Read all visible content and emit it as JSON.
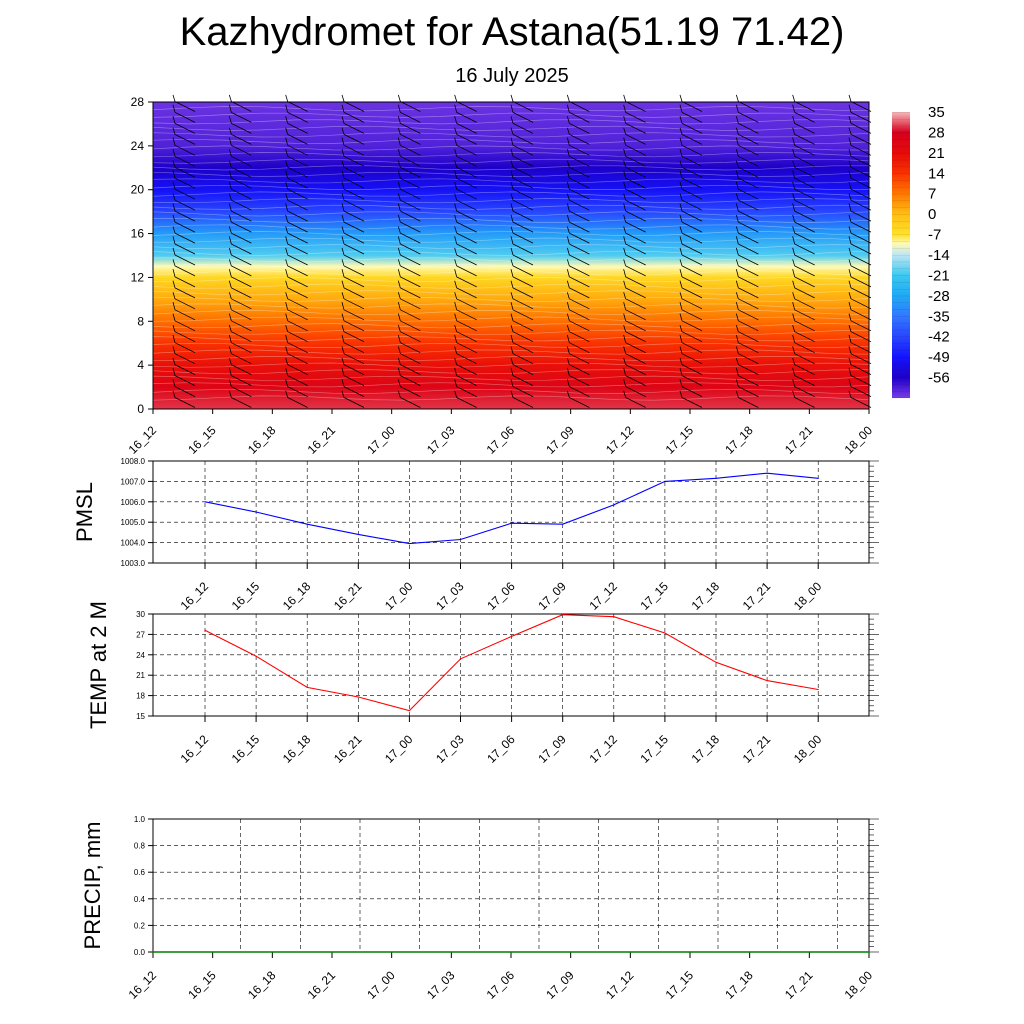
{
  "title": "Kazhydromet for Astana(51.19 71.42)",
  "subtitle": "16 July 2025",
  "colors": {
    "pmsl_line": "#0000ff",
    "temp_line": "#ff0000",
    "precip_line": "#008000"
  },
  "chart_data": [
    {
      "type": "heatmap",
      "name": "vertical-temperature-cross-section",
      "x_tick_labels": [
        "16_12",
        "16_15",
        "16_18",
        "16_21",
        "17_00",
        "17_03",
        "17_06",
        "17_09",
        "17_12",
        "17_15",
        "17_18",
        "17_21",
        "18_00"
      ],
      "y_tick_labels": [
        "0",
        "4",
        "8",
        "12",
        "16",
        "20",
        "24",
        "28"
      ],
      "ylim": [
        0,
        28
      ],
      "colorbar_labels": [
        "35",
        "28",
        "21",
        "14",
        "7",
        "0",
        "-7",
        "-14",
        "-21",
        "-28",
        "-35",
        "-42",
        "-49",
        "-56"
      ],
      "colorbar_range": [
        -63,
        35
      ],
      "temperature_profile": [
        {
          "y": 0,
          "t": 30
        },
        {
          "y": 2,
          "t": 25
        },
        {
          "y": 4,
          "t": 20
        },
        {
          "y": 6,
          "t": 14
        },
        {
          "y": 8,
          "t": 8
        },
        {
          "y": 10,
          "t": 2
        },
        {
          "y": 12,
          "t": -5
        },
        {
          "y": 13,
          "t": -10
        },
        {
          "y": 14,
          "t": -20
        },
        {
          "y": 16,
          "t": -30
        },
        {
          "y": 18,
          "t": -42
        },
        {
          "y": 20,
          "t": -50
        },
        {
          "y": 22,
          "t": -56
        },
        {
          "y": 24,
          "t": -60
        },
        {
          "y": 28,
          "t": -62
        }
      ],
      "wind_barbs": true
    },
    {
      "type": "line",
      "name": "pmsl",
      "ylabel": "PMSL",
      "x": [
        "16_12",
        "16_15",
        "16_18",
        "16_21",
        "17_00",
        "17_03",
        "17_06",
        "17_09",
        "17_12",
        "17_15",
        "17_18",
        "17_21",
        "18_00"
      ],
      "values": [
        1006.0,
        1005.5,
        1004.9,
        1004.4,
        1003.95,
        1004.15,
        1004.95,
        1004.9,
        1005.85,
        1007.0,
        1007.15,
        1007.4,
        1007.15
      ],
      "ylim": [
        1003.0,
        1008.0
      ],
      "y_tick_labels": [
        "1008.0",
        "1007.0",
        "1006.0",
        "1005.0",
        "1004.0",
        "1003.0"
      ],
      "grid": true
    },
    {
      "type": "line",
      "name": "temp-2m",
      "ylabel": "TEMP at 2 M",
      "x": [
        "16_12",
        "16_15",
        "16_18",
        "16_21",
        "17_00",
        "17_03",
        "17_06",
        "17_09",
        "17_12",
        "17_15",
        "17_18",
        "17_21",
        "18_00"
      ],
      "values": [
        27.6,
        23.8,
        19.2,
        17.8,
        15.8,
        23.4,
        26.7,
        29.9,
        29.6,
        27.2,
        22.9,
        20.2,
        18.9
      ],
      "ylim": [
        15,
        30
      ],
      "y_tick_labels": [
        "30",
        "27",
        "24",
        "21",
        "18",
        "15"
      ],
      "grid": true
    },
    {
      "type": "line",
      "name": "precip",
      "ylabel": "PRECIP, mm",
      "x": [
        "16_12",
        "16_15",
        "16_18",
        "16_21",
        "17_00",
        "17_03",
        "17_06",
        "17_09",
        "17_12",
        "17_15",
        "17_18",
        "17_21",
        "18_00"
      ],
      "values": [
        0,
        0,
        0,
        0,
        0,
        0,
        0,
        0,
        0,
        0,
        0,
        0,
        0
      ],
      "ylim": [
        0.0,
        1.0
      ],
      "y_tick_labels": [
        "1.0",
        "0.8",
        "0.6",
        "0.4",
        "0.2",
        "0.0"
      ],
      "grid": true
    }
  ]
}
